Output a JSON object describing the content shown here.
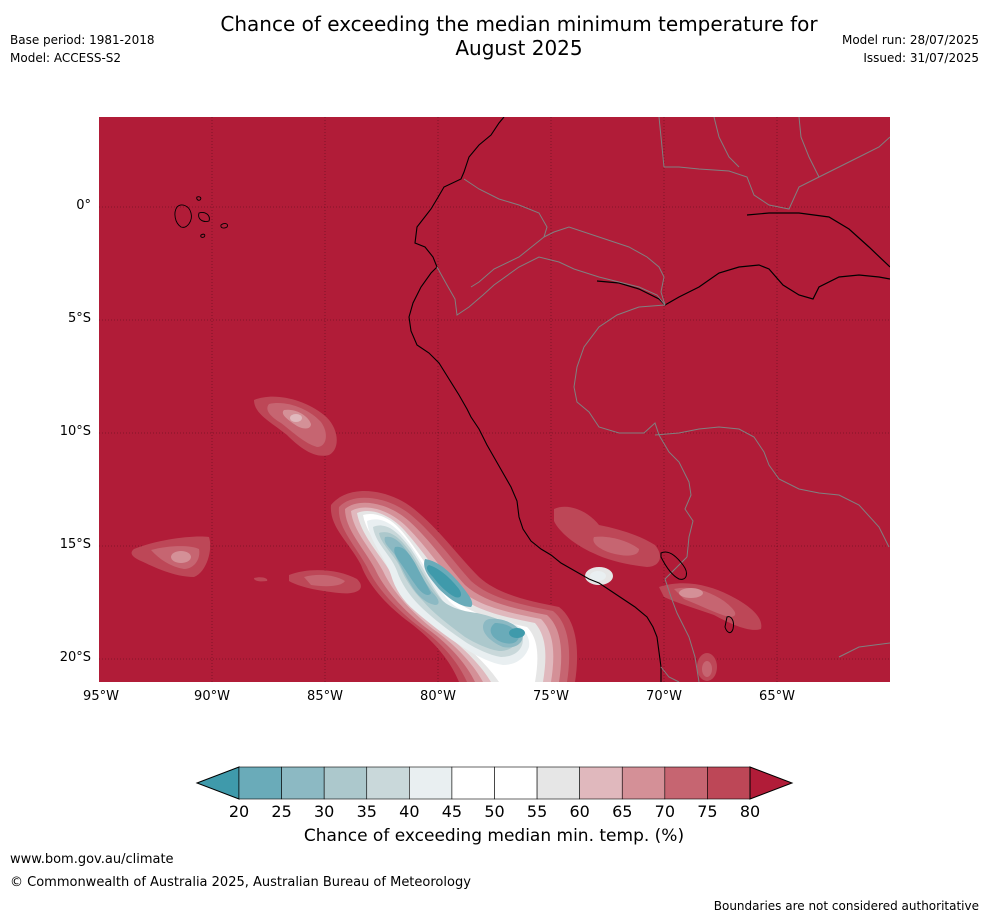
{
  "header": {
    "title_line1": "Chance of exceeding the median minimum temperature for",
    "title_line2": "August 2025",
    "base_period": "Base period: 1981-2018",
    "model": "Model: ACCESS-S2",
    "model_run": "Model run: 28/07/2025",
    "issued": "Issued: 31/07/2025"
  },
  "map": {
    "lat_labels": [
      "0°",
      "5°S",
      "10°S",
      "15°S",
      "20°S"
    ],
    "lon_labels": [
      "95°W",
      "90°W",
      "85°W",
      "80°W",
      "75°W",
      "70°W",
      "65°W"
    ],
    "background_category": "75-80+",
    "colors": {
      "c20": "#3f9aab",
      "c25": "#6aabb9",
      "c30": "#8cb9c3",
      "c35": "#acc8cc",
      "c40": "#c9d8da",
      "c45": "#e9eff1",
      "c50": "#ffffff",
      "c55": "#ffffff",
      "c60": "#e6e6e6",
      "c65": "#e0b8bd",
      "c70": "#d49097",
      "c75": "#c66571",
      "c80": "#bd4757",
      "c80plus": "#b11c38",
      "coast": "#000000",
      "border": "#808080"
    }
  },
  "colorbar": {
    "ticks": [
      "20",
      "25",
      "30",
      "35",
      "40",
      "45",
      "50",
      "55",
      "60",
      "65",
      "70",
      "75",
      "80"
    ],
    "label": "Chance of exceeding median min. temp. (%)"
  },
  "footer": {
    "url": "www.bom.gov.au/climate",
    "copyright": "© Commonwealth of Australia 2025, Australian Bureau of Meteorology",
    "note": "Boundaries are not considered authoritative"
  }
}
